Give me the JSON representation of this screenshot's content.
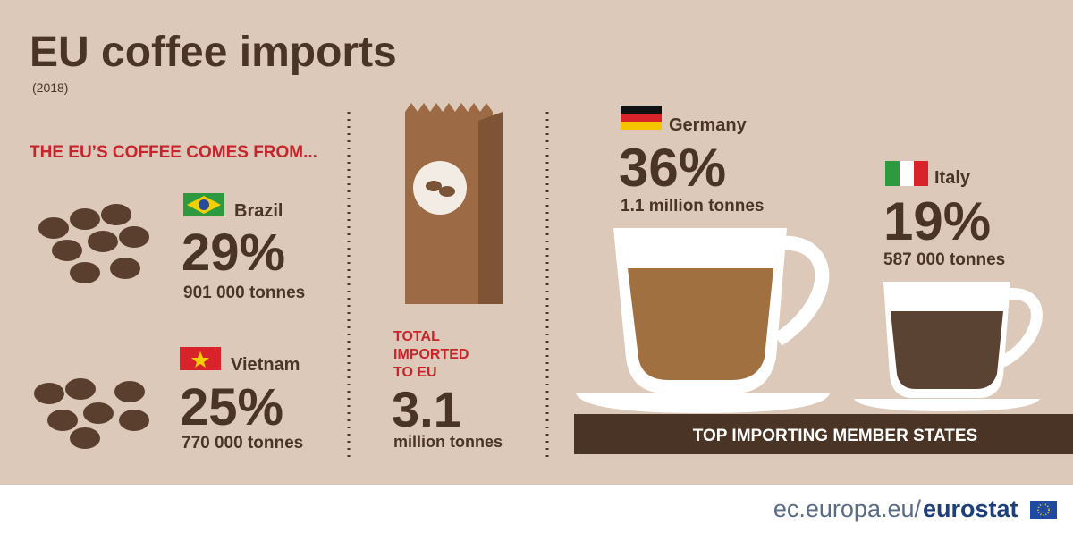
{
  "header": {
    "title": "EU coffee imports",
    "subtitle": "(2018)"
  },
  "origins": {
    "heading": "THE EU’S COFFEE COMES FROM...",
    "items": [
      {
        "country": "Brazil",
        "share": "29%",
        "amount": "901 000 tonnes"
      },
      {
        "country": "Vietnam",
        "share": "25%",
        "amount": "770 000 tonnes"
      }
    ]
  },
  "total": {
    "label": [
      "TOTAL",
      "IMPORTED",
      "TO EU"
    ],
    "value": "3.1",
    "unit": "million tonnes"
  },
  "importers": {
    "heading": "TOP IMPORTING MEMBER STATES",
    "items": [
      {
        "country": "Germany",
        "share": "36%",
        "amount": "1.1 million tonnes"
      },
      {
        "country": "Italy",
        "share": "19%",
        "amount": "587 000 tonnes"
      }
    ]
  },
  "footer": {
    "site": "ec.europa.eu/",
    "brand": "eurostat"
  }
}
